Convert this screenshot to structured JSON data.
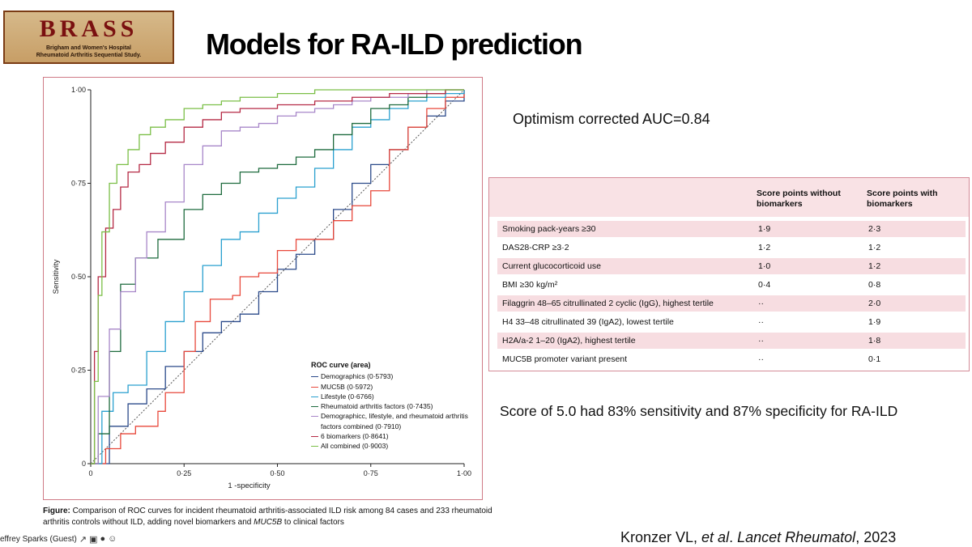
{
  "logo": {
    "title": "BRASS",
    "line1": "Brigham and Women's Hospital",
    "line2": "Rheumatoid Arthritis Sequential Study."
  },
  "slide_title": "Models for RA-ILD prediction",
  "auc_text": "Optimism corrected AUC=0.84",
  "score_text": "Score of 5.0 had 83% sensitivity and 87% specificity for RA-ILD",
  "citation": {
    "authors": "Kronzer VL, ",
    "etal": "et al",
    "journal": ". Lancet Rheumatol",
    "year": ", 2023"
  },
  "caption": {
    "label": "Figure:",
    "text": " Comparison of ROC curves for incident rheumatoid arthritis-associated ILD risk among 84 cases and 233 rheumatoid arthritis controls without ILD, adding novel biomarkers and ",
    "gene": "MUC5B",
    "text2": " to clinical factors"
  },
  "toolbar": {
    "participant": "effrey Sparks (Guest)"
  },
  "table": {
    "col1": "Score points without biomarkers",
    "col2": "Score points with biomarkers",
    "rows": [
      {
        "label": "Smoking pack-years ≥30",
        "a": "1·9",
        "b": "2·3"
      },
      {
        "label": "DAS28-CRP ≥3·2",
        "a": "1·2",
        "b": "1·2"
      },
      {
        "label": "Current glucocorticoid use",
        "a": "1·0",
        "b": "1·2"
      },
      {
        "label": "BMI ≥30 kg/m²",
        "a": "0·4",
        "b": "0·8"
      },
      {
        "label": "Filaggrin 48–65 citrullinated 2 cyclic (IgG), highest tertile",
        "a": "··",
        "b": "2·0"
      },
      {
        "label": "H4 33–48 citrullinated 39 (IgA2), lowest tertile",
        "a": "··",
        "b": "1·9"
      },
      {
        "label": "H2A/a-2 1–20 (IgA2), highest tertile",
        "a": "··",
        "b": "1·8"
      },
      {
        "label": "MUC5B promoter variant present",
        "a": "··",
        "b": "0·1"
      }
    ]
  },
  "chart_data": {
    "type": "line",
    "xlabel": "1 -specificity",
    "ylabel": "Sensitivity",
    "xlim": [
      0,
      1
    ],
    "ylim": [
      0,
      1
    ],
    "xticks": [
      "0",
      "0·25",
      "0·50",
      "0·75",
      "1·00"
    ],
    "yticks": [
      "0",
      "0·25",
      "0·50",
      "0·75",
      "1·00"
    ],
    "legend_title": "ROC curve (area)",
    "legend_position": "bottom-right",
    "reference_line": true,
    "series": [
      {
        "name": "Demographics (0·5793)",
        "color": "#2b4a8a",
        "x": [
          0,
          0.05,
          0.1,
          0.15,
          0.2,
          0.25,
          0.3,
          0.35,
          0.4,
          0.45,
          0.5,
          0.55,
          0.6,
          0.65,
          0.7,
          0.75,
          0.8,
          0.85,
          0.9,
          0.95,
          1
        ],
        "y": [
          0,
          0.1,
          0.16,
          0.2,
          0.26,
          0.3,
          0.35,
          0.38,
          0.4,
          0.46,
          0.52,
          0.56,
          0.6,
          0.68,
          0.75,
          0.8,
          0.84,
          0.9,
          0.93,
          0.97,
          1
        ]
      },
      {
        "name": "MUC5B (0·5972)",
        "color": "#e8483b",
        "x": [
          0,
          0.04,
          0.08,
          0.12,
          0.18,
          0.2,
          0.25,
          0.28,
          0.32,
          0.38,
          0.4,
          0.45,
          0.5,
          0.55,
          0.6,
          0.65,
          0.7,
          0.75,
          0.8,
          0.85,
          0.9,
          0.95,
          1
        ],
        "y": [
          0,
          0.04,
          0.08,
          0.1,
          0.14,
          0.19,
          0.3,
          0.38,
          0.44,
          0.45,
          0.5,
          0.51,
          0.57,
          0.6,
          0.6,
          0.65,
          0.69,
          0.73,
          0.84,
          0.9,
          0.95,
          0.98,
          1
        ]
      },
      {
        "name": "Lifestyle (0·6766)",
        "color": "#2aa0cf",
        "x": [
          0,
          0.03,
          0.06,
          0.1,
          0.15,
          0.2,
          0.25,
          0.3,
          0.35,
          0.4,
          0.45,
          0.5,
          0.55,
          0.6,
          0.65,
          0.7,
          0.75,
          0.8,
          0.85,
          0.9,
          0.95,
          1
        ],
        "y": [
          0,
          0.14,
          0.19,
          0.21,
          0.3,
          0.38,
          0.46,
          0.53,
          0.6,
          0.62,
          0.67,
          0.71,
          0.74,
          0.79,
          0.84,
          0.9,
          0.92,
          0.95,
          0.97,
          0.98,
          0.99,
          1
        ]
      },
      {
        "name": "Rheumatoid arthritis factors (0·7435)",
        "color": "#1e6b3e",
        "x": [
          0,
          0.02,
          0.05,
          0.08,
          0.12,
          0.18,
          0.25,
          0.3,
          0.35,
          0.4,
          0.45,
          0.5,
          0.55,
          0.6,
          0.65,
          0.7,
          0.75,
          0.8,
          0.85,
          0.9,
          0.95,
          1
        ],
        "y": [
          0,
          0.08,
          0.3,
          0.48,
          0.55,
          0.6,
          0.68,
          0.72,
          0.75,
          0.78,
          0.79,
          0.8,
          0.82,
          0.84,
          0.88,
          0.91,
          0.95,
          0.96,
          0.98,
          0.99,
          1,
          1
        ]
      },
      {
        "name": "Demographicc, lifestyle, and rheumatoid arthritis factors combined (0·7910)",
        "color": "#a887c9",
        "x": [
          0,
          0.02,
          0.05,
          0.08,
          0.12,
          0.15,
          0.2,
          0.25,
          0.3,
          0.35,
          0.4,
          0.45,
          0.5,
          0.55,
          0.6,
          0.65,
          0.7,
          0.75,
          0.8,
          0.85,
          0.9,
          0.95,
          1
        ],
        "y": [
          0,
          0.18,
          0.36,
          0.46,
          0.55,
          0.62,
          0.7,
          0.8,
          0.85,
          0.89,
          0.9,
          0.91,
          0.93,
          0.94,
          0.95,
          0.96,
          0.97,
          0.98,
          0.98,
          0.99,
          1,
          1,
          1
        ]
      },
      {
        "name": "6 biomarkers (0·8641)",
        "color": "#b52a45",
        "x": [
          0,
          0.01,
          0.02,
          0.04,
          0.06,
          0.08,
          0.1,
          0.13,
          0.16,
          0.2,
          0.25,
          0.3,
          0.35,
          0.4,
          0.5,
          0.6,
          0.7,
          0.8,
          0.9,
          0.95,
          1
        ],
        "y": [
          0,
          0.3,
          0.5,
          0.63,
          0.68,
          0.74,
          0.78,
          0.8,
          0.83,
          0.86,
          0.9,
          0.92,
          0.94,
          0.95,
          0.96,
          0.97,
          0.98,
          0.99,
          0.99,
          1,
          1
        ]
      },
      {
        "name": "All combined (0·9003)",
        "color": "#7bbf47",
        "x": [
          0,
          0.01,
          0.02,
          0.03,
          0.05,
          0.07,
          0.1,
          0.13,
          0.16,
          0.2,
          0.25,
          0.3,
          0.35,
          0.4,
          0.5,
          0.6,
          0.7,
          0.8,
          0.9,
          0.95,
          1
        ],
        "y": [
          0,
          0.22,
          0.45,
          0.62,
          0.75,
          0.8,
          0.84,
          0.88,
          0.9,
          0.92,
          0.95,
          0.96,
          0.97,
          0.98,
          0.99,
          1,
          1,
          1,
          1,
          1,
          1
        ]
      }
    ]
  }
}
